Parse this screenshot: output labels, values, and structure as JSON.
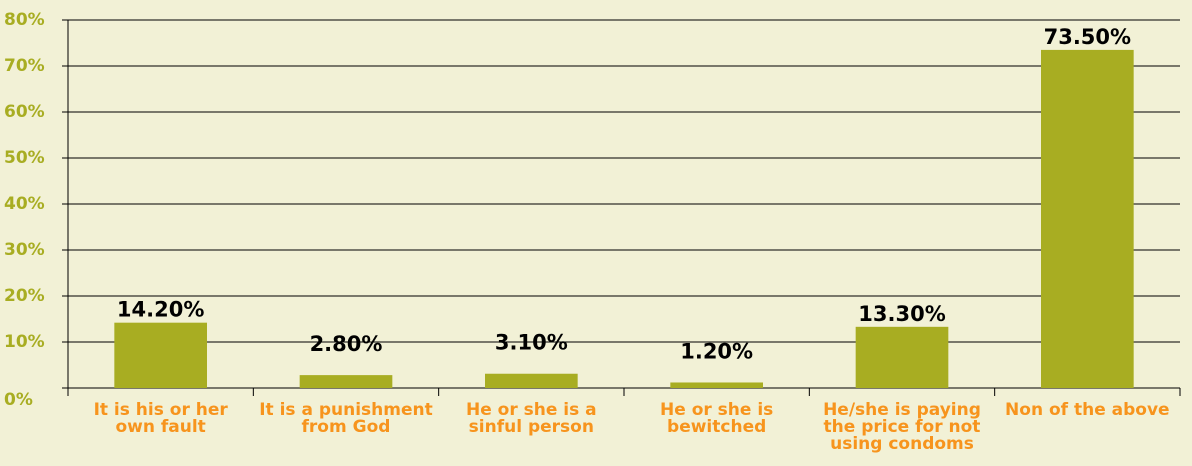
{
  "chart_data": {
    "type": "bar",
    "categories": [
      "It is his or her own fault",
      "It is a punishment from God",
      "He or she is a sinful person",
      "He or she is bewitched",
      "He/she is paying the price for not using condoms",
      "Non of the above"
    ],
    "values": [
      14.2,
      2.8,
      3.1,
      1.2,
      13.3,
      73.5
    ],
    "value_labels": [
      "14.20%",
      "2.80%",
      "3.10%",
      "1.20%",
      "13.30%",
      "73.50%"
    ],
    "color": "#a8ad22",
    "ylim": [
      0,
      80
    ],
    "yticks": [
      {
        "value": 0,
        "label": "0%"
      },
      {
        "value": 10,
        "label": "10%"
      },
      {
        "value": 20,
        "label": "20%"
      },
      {
        "value": 30,
        "label": "30%"
      },
      {
        "value": 40,
        "label": "40%"
      },
      {
        "value": 50,
        "label": "50%"
      },
      {
        "value": 60,
        "label": "60%"
      },
      {
        "value": 70,
        "label": "70%"
      },
      {
        "value": 80,
        "label": "80%"
      }
    ],
    "grid": true
  }
}
